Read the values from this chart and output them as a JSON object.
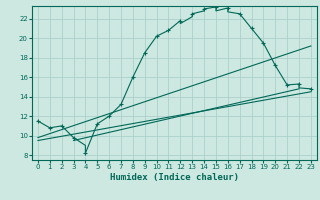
{
  "xlabel": "Humidex (Indice chaleur)",
  "bg_color": "#cce8e0",
  "line_color": "#006858",
  "grid_color": "#a8ccc8",
  "xlim": [
    -0.5,
    23.5
  ],
  "ylim": [
    7.5,
    23.3
  ],
  "xticks": [
    0,
    1,
    2,
    3,
    4,
    5,
    6,
    7,
    8,
    9,
    10,
    11,
    12,
    13,
    14,
    15,
    16,
    17,
    18,
    19,
    20,
    21,
    22,
    23
  ],
  "yticks": [
    8,
    10,
    12,
    14,
    16,
    18,
    20,
    22
  ],
  "main_x": [
    0,
    1,
    2,
    3,
    4,
    4,
    5,
    6,
    7,
    8,
    9,
    10,
    11,
    12,
    12,
    13,
    13,
    14,
    14,
    15,
    15,
    16,
    16,
    17,
    18,
    19,
    20,
    21,
    22,
    22,
    23
  ],
  "main_y": [
    11.5,
    10.8,
    11.0,
    9.8,
    9.0,
    8.2,
    11.2,
    12.0,
    13.2,
    16.0,
    18.5,
    20.2,
    20.8,
    21.8,
    21.5,
    22.2,
    22.5,
    22.8,
    23.0,
    23.2,
    22.8,
    23.1,
    22.7,
    22.5,
    21.0,
    19.5,
    17.2,
    15.2,
    15.3,
    14.9,
    14.8
  ],
  "mark_x": [
    0,
    1,
    2,
    3,
    4,
    5,
    6,
    7,
    8,
    9,
    10,
    11,
    12,
    13,
    14,
    15,
    16,
    17,
    18,
    19,
    20,
    21,
    22,
    23
  ],
  "mark_y": [
    11.5,
    10.8,
    11.0,
    9.8,
    8.2,
    11.2,
    12.0,
    13.2,
    16.0,
    18.5,
    20.2,
    20.8,
    21.8,
    22.5,
    23.0,
    23.2,
    23.1,
    22.5,
    21.0,
    19.5,
    17.2,
    15.2,
    15.3,
    14.8
  ],
  "line1_x": [
    0,
    23
  ],
  "line1_y": [
    9.5,
    14.5
  ],
  "line2_x": [
    0,
    23
  ],
  "line2_y": [
    9.8,
    19.2
  ],
  "line3_x": [
    3,
    22
  ],
  "line3_y": [
    9.5,
    14.8
  ],
  "xlabel_fontsize": 6.5
}
